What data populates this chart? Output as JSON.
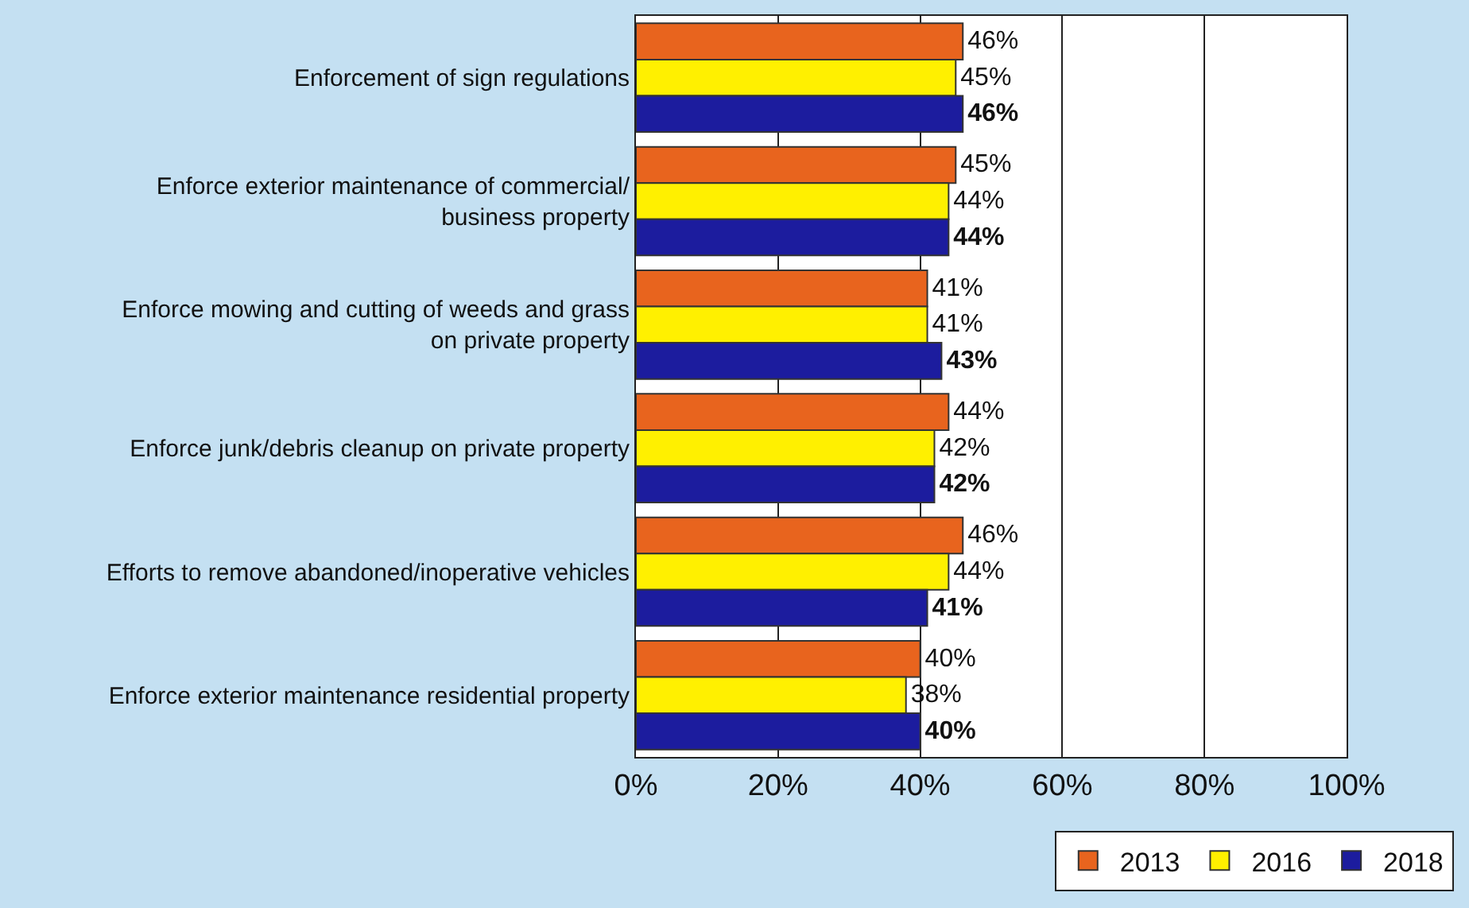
{
  "chart_data": {
    "type": "bar",
    "orientation": "horizontal",
    "categories": [
      "Enforcement of sign regulations",
      "Enforce exterior maintenance of commercial/\nbusiness property",
      "Enforce mowing and cutting of weeds and grass\non private property",
      "Enforce junk/debris cleanup on private property",
      "Efforts to remove abandoned/inoperative vehicles",
      "Enforce exterior maintenance residential property"
    ],
    "series": [
      {
        "name": "2013",
        "color": "#e8641e",
        "values": [
          46,
          45,
          41,
          44,
          46,
          40
        ],
        "value_labels": [
          "46%",
          "45%",
          "41%",
          "44%",
          "46%",
          "40%"
        ]
      },
      {
        "name": "2016",
        "color": "#fff000",
        "values": [
          45,
          44,
          41,
          42,
          44,
          38
        ],
        "value_labels": [
          "45%",
          "44%",
          "41%",
          "42%",
          "44%",
          "38%"
        ]
      },
      {
        "name": "2018",
        "color": "#1c1c9e",
        "values": [
          46,
          44,
          43,
          42,
          41,
          40
        ],
        "value_labels": [
          "46%",
          "44%",
          "43%",
          "42%",
          "41%",
          "40%"
        ]
      }
    ],
    "xlim": [
      0,
      100
    ],
    "xticks": [
      {
        "value": 0,
        "label": "0%"
      },
      {
        "value": 20,
        "label": "20%"
      },
      {
        "value": 40,
        "label": "40%"
      },
      {
        "value": 60,
        "label": "60%"
      },
      {
        "value": 80,
        "label": "80%"
      },
      {
        "value": 100,
        "label": "100%"
      }
    ],
    "grid": "x",
    "legend": "bottom"
  }
}
